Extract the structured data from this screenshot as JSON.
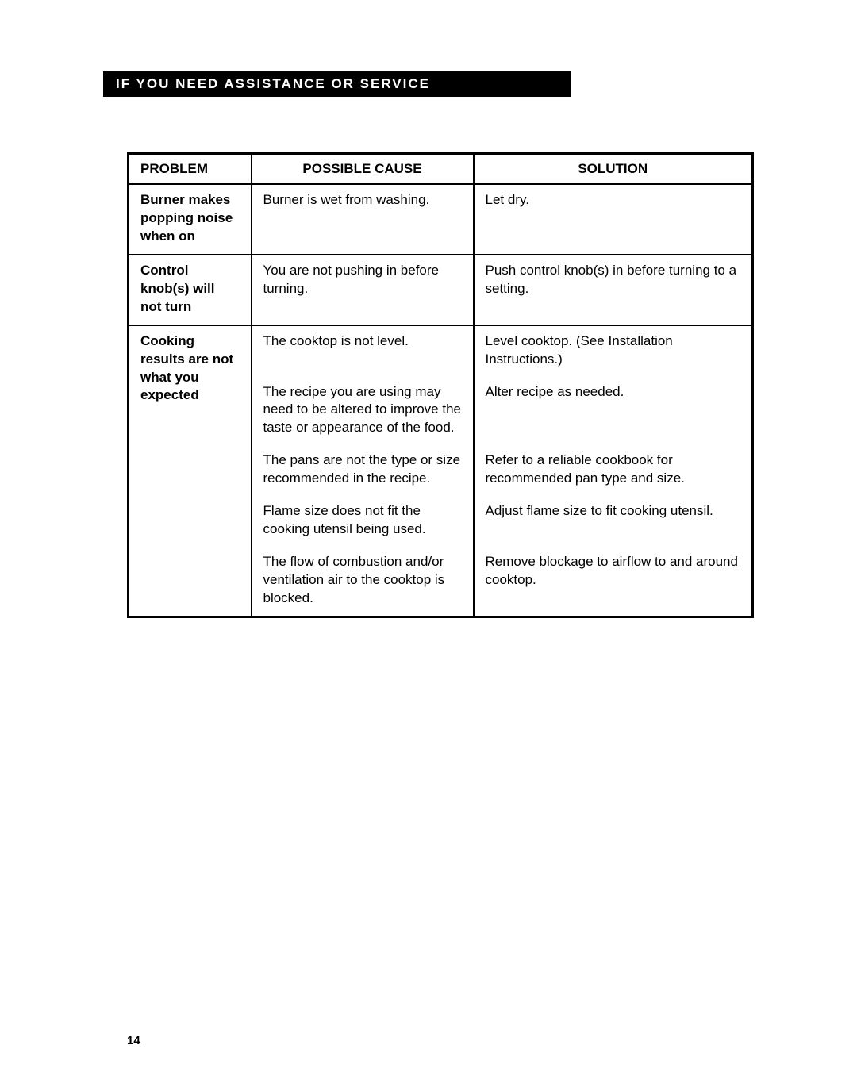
{
  "header": {
    "title": "IF YOU NEED ASSISTANCE OR SERVICE"
  },
  "table": {
    "columns": [
      "PROBLEM",
      "POSSIBLE CAUSE",
      "SOLUTION"
    ],
    "groups": [
      {
        "problem": "Burner makes popping noise when on",
        "rows": [
          {
            "cause": "Burner is wet from washing.",
            "solution": "Let dry."
          }
        ]
      },
      {
        "problem": "Control knob(s) will not turn",
        "rows": [
          {
            "cause": "You are not pushing in before turning.",
            "solution": "Push control knob(s) in before turning to a setting."
          }
        ]
      },
      {
        "problem": "Cooking results are not what you expected",
        "rows": [
          {
            "cause": "The cooktop is not level.",
            "solution": "Level cooktop. (See Installation Instructions.)"
          },
          {
            "cause": "The recipe you are using may need to be altered to improve the taste or appearance of the food.",
            "solution": "Alter recipe as needed."
          },
          {
            "cause": "The pans are not the type or size recommended in the recipe.",
            "solution": "Refer to a reliable cookbook for recommended pan type and size."
          },
          {
            "cause": "Flame size does not fit the cooking utensil being used.",
            "solution": "Adjust flame size to fit cooking utensil."
          },
          {
            "cause": "The flow of combustion and/or ventilation air to the cooktop is blocked.",
            "solution": "Remove blockage to airflow to and around cooktop."
          }
        ]
      }
    ]
  },
  "pageNumber": "14",
  "colors": {
    "headerBg": "#000000",
    "headerText": "#ffffff",
    "border": "#000000",
    "pageBg": "#ffffff",
    "text": "#000000"
  }
}
